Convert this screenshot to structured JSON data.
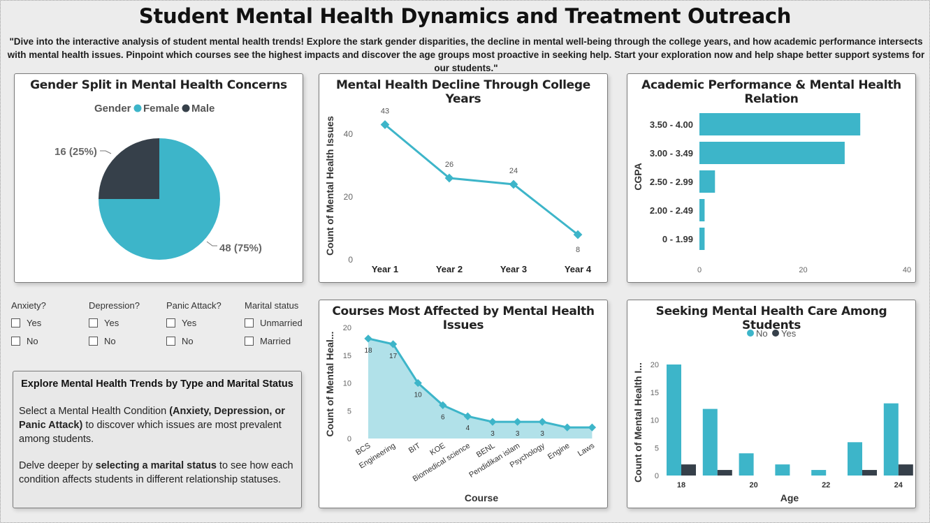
{
  "title": "Student Mental Health Dynamics and Treatment Outreach",
  "subtitle": "\"Dive into the interactive analysis of student mental health trends! Explore the stark gender disparities, the decline in mental well-being through the college years, and how academic performance intersects with mental health issues. Pinpoint which courses see the highest impacts and discover the age groups most proactive in seeking help. Start your exploration now and help shape better support systems for our students.\"",
  "colors": {
    "teal": "#3db5c9",
    "dark": "#36404a",
    "area": "#b1e1e9"
  },
  "filters": {
    "anxiety": {
      "label": "Anxiety?",
      "opt1": "Yes",
      "opt2": "No"
    },
    "depression": {
      "label": "Depression?",
      "opt1": "Yes",
      "opt2": "No"
    },
    "panic": {
      "label": "Panic Attack?",
      "opt1": "Yes",
      "opt2": "No"
    },
    "marital": {
      "label": "Marital status",
      "opt1": "Unmarried",
      "opt2": "Married"
    }
  },
  "info": {
    "title": "Explore Mental Health Trends by Type and Marital Status",
    "p1_a": "Select a Mental Health Condition ",
    "p1_b": "(Anxiety, Depression, or Panic Attack)",
    "p1_c": " to discover which issues are most prevalent among students.",
    "p2_a": "Delve deeper by ",
    "p2_b": "selecting a marital status",
    "p2_c": " to see how each condition affects students in different relationship statuses."
  },
  "chart_data": [
    {
      "id": "gender",
      "type": "pie",
      "title": "Gender Split in Mental Health Concerns",
      "legend_title": "Gender",
      "legend_position": "top",
      "categories": [
        "Female",
        "Male"
      ],
      "values": [
        48,
        16
      ],
      "data_labels": [
        "48 (75%)",
        "16 (25%)"
      ]
    },
    {
      "id": "years",
      "type": "line",
      "title": "Mental Health Decline Through College Years",
      "xlabel": "",
      "ylabel": "Count of Mental Health Issues",
      "categories": [
        "Year 1",
        "Year 2",
        "Year 3",
        "Year 4"
      ],
      "values": [
        43,
        26,
        24,
        8
      ],
      "yticks": [
        "0",
        "20",
        "40"
      ],
      "ylim": [
        0,
        50
      ],
      "grid": false
    },
    {
      "id": "cgpa",
      "type": "bar",
      "orientation": "horizontal",
      "title": "Academic Performance & Mental Health Relation",
      "xlabel": "",
      "ylabel": "CGPA",
      "categories": [
        "3.50 - 4.00",
        "3.00 - 3.49",
        "2.50 - 2.99",
        "2.00 - 2.49",
        "0 - 1.99"
      ],
      "values": [
        31,
        28,
        3,
        1,
        1
      ],
      "xticks": [
        "0",
        "20",
        "40"
      ],
      "xlim": [
        0,
        40
      ],
      "grid": false
    },
    {
      "id": "courses",
      "type": "area",
      "title": "Courses Most Affected by Mental Health Issues",
      "xlabel": "Course",
      "ylabel": "Count of Mental Heal...",
      "categories": [
        "BCS",
        "Engineering",
        "BIT",
        "KOE",
        "Biomedical science",
        "BENL",
        "Pendidikan islam",
        "Psychology",
        "Engine",
        "Laws"
      ],
      "values": [
        18,
        17,
        10,
        6,
        4,
        3,
        3,
        3,
        2,
        2
      ],
      "data_labels": [
        "18",
        "17",
        "10",
        "6",
        "4",
        "3",
        "3",
        "3",
        "",
        ""
      ],
      "yticks": [
        "0",
        "5",
        "10",
        "15",
        "20"
      ],
      "ylim": [
        0,
        20
      ],
      "grid": false
    },
    {
      "id": "age",
      "type": "bar",
      "title": "Seeking Mental Health Care Among Students",
      "xlabel": "Age",
      "ylabel": "Count of Mental Health I...",
      "legend_position": "top",
      "categories": [
        "18",
        "19",
        "20",
        "21",
        "22",
        "23",
        "24"
      ],
      "xticks": [
        "18",
        "20",
        "22",
        "24"
      ],
      "series": [
        {
          "name": "No",
          "values": [
            20,
            12,
            4,
            2,
            1,
            6,
            13
          ]
        },
        {
          "name": "Yes",
          "values": [
            2,
            1,
            0,
            0,
            0,
            1,
            2
          ]
        }
      ],
      "yticks": [
        "0",
        "5",
        "10",
        "15",
        "20"
      ],
      "ylim": [
        0,
        22
      ],
      "grid": false
    }
  ]
}
